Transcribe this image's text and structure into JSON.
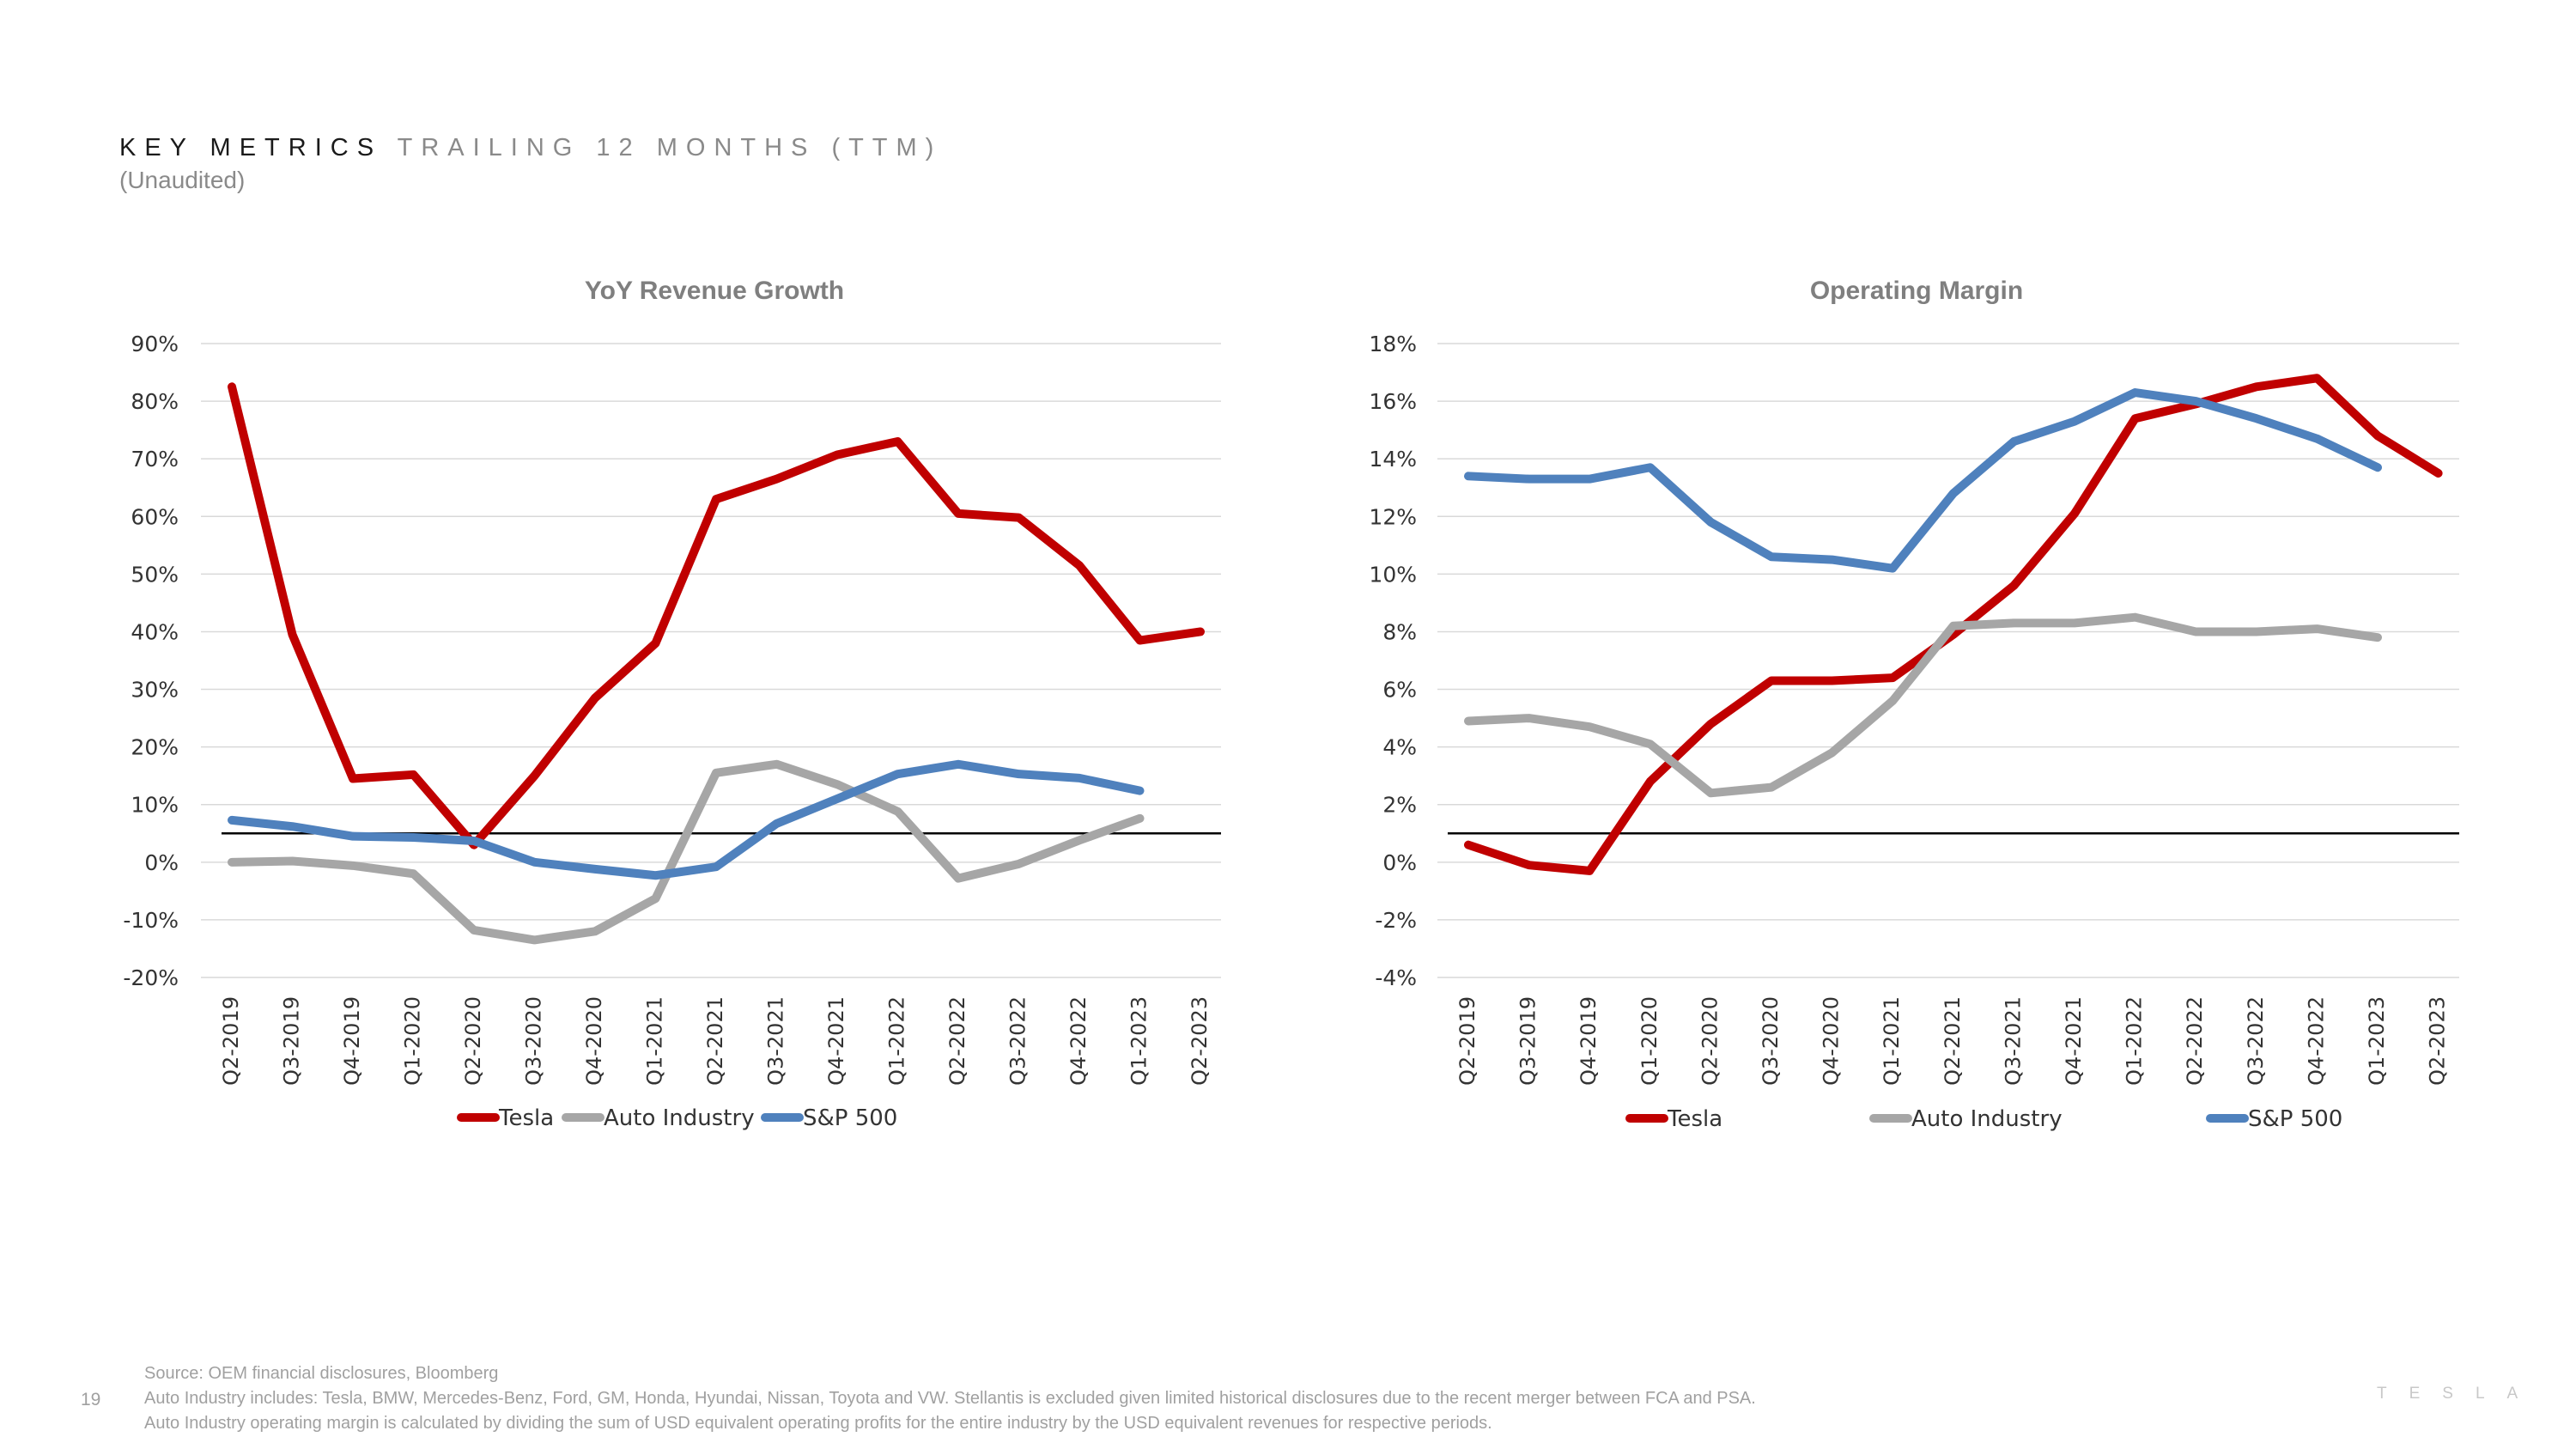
{
  "header": {
    "title_main": "KEY METRICS",
    "title_sub": "TRAILING 12 MONTHS (TTM)",
    "subtitle": "(Unaudited)"
  },
  "colors": {
    "tesla": "#c00000",
    "auto": "#a6a6a6",
    "sp500": "#4f81bd",
    "grid": "#d9d9d9",
    "reference_line": "#000000"
  },
  "chart_data": [
    {
      "type": "line",
      "title": "YoY Revenue Growth",
      "categories": [
        "Q2-2019",
        "Q3-2019",
        "Q4-2019",
        "Q1-2020",
        "Q2-2020",
        "Q3-2020",
        "Q4-2020",
        "Q1-2021",
        "Q2-2021",
        "Q3-2021",
        "Q4-2021",
        "Q1-2022",
        "Q2-2022",
        "Q3-2022",
        "Q4-2022",
        "Q1-2023",
        "Q2-2023"
      ],
      "yticks": [
        "90%",
        "80%",
        "70%",
        "60%",
        "50%",
        "40%",
        "30%",
        "20%",
        "10%",
        "0%",
        "-10%",
        "-20%"
      ],
      "ylim": [
        -20,
        90
      ],
      "reference_line": 5,
      "series": [
        {
          "name": "Tesla",
          "color": "#c00000",
          "values": [
            82.5,
            39.5,
            14.5,
            15.2,
            3.0,
            15.0,
            28.5,
            38.0,
            63.0,
            66.5,
            70.7,
            73.0,
            60.5,
            59.8,
            51.5,
            38.5,
            40.0
          ]
        },
        {
          "name": "Auto Industry",
          "color": "#a6a6a6",
          "values": [
            0.0,
            0.2,
            -0.6,
            -2.0,
            -11.8,
            -13.5,
            -12.0,
            -6.3,
            15.5,
            17.0,
            13.5,
            8.8,
            -2.8,
            -0.3,
            3.8,
            7.6,
            null
          ]
        },
        {
          "name": "S&P 500",
          "color": "#4f81bd",
          "values": [
            7.3,
            6.2,
            4.5,
            4.3,
            3.7,
            0.0,
            -1.2,
            -2.3,
            -0.8,
            6.7,
            11.0,
            15.3,
            17.0,
            15.3,
            14.6,
            12.4,
            null
          ]
        }
      ],
      "legend": [
        "Tesla",
        "Auto Industry",
        "S&P 500"
      ]
    },
    {
      "type": "line",
      "title": "Operating Margin",
      "categories": [
        "Q2-2019",
        "Q3-2019",
        "Q4-2019",
        "Q1-2020",
        "Q2-2020",
        "Q3-2020",
        "Q4-2020",
        "Q1-2021",
        "Q2-2021",
        "Q3-2021",
        "Q4-2021",
        "Q1-2022",
        "Q2-2022",
        "Q3-2022",
        "Q4-2022",
        "Q1-2023",
        "Q2-2023"
      ],
      "yticks": [
        "18%",
        "16%",
        "14%",
        "12%",
        "10%",
        "8%",
        "6%",
        "4%",
        "2%",
        "0%",
        "-2%",
        "-4%"
      ],
      "ylim": [
        -4,
        18
      ],
      "reference_line": 1,
      "series": [
        {
          "name": "Tesla",
          "color": "#c00000",
          "values": [
            0.6,
            -0.1,
            -0.3,
            2.8,
            4.8,
            6.3,
            6.3,
            6.4,
            7.9,
            9.6,
            12.1,
            15.4,
            15.9,
            16.5,
            16.8,
            14.8,
            13.5
          ]
        },
        {
          "name": "Auto Industry",
          "color": "#a6a6a6",
          "values": [
            4.9,
            5.0,
            4.7,
            4.1,
            2.4,
            2.6,
            3.8,
            5.6,
            8.2,
            8.3,
            8.3,
            8.5,
            8.0,
            8.0,
            8.1,
            7.8,
            null
          ]
        },
        {
          "name": "S&P 500",
          "color": "#4f81bd",
          "values": [
            13.4,
            13.3,
            13.3,
            13.7,
            11.8,
            10.6,
            10.5,
            10.2,
            12.8,
            14.6,
            15.3,
            16.3,
            16.0,
            15.4,
            14.7,
            13.7,
            null
          ]
        }
      ],
      "legend": [
        "Tesla",
        "Auto Industry",
        "S&P 500"
      ]
    }
  ],
  "footer": {
    "lines": [
      "Source: OEM financial disclosures, Bloomberg",
      "Auto Industry includes: Tesla, BMW, Mercedes-Benz, Ford, GM, Honda, Hyundai, Nissan, Toyota and VW. Stellantis is excluded given limited historical disclosures due to the recent merger between FCA and PSA.",
      "Auto Industry operating margin is calculated by dividing the sum of USD equivalent operating profits for the entire industry by the USD equivalent revenues for respective periods."
    ],
    "page_number": "19",
    "brand": "TESLA"
  }
}
